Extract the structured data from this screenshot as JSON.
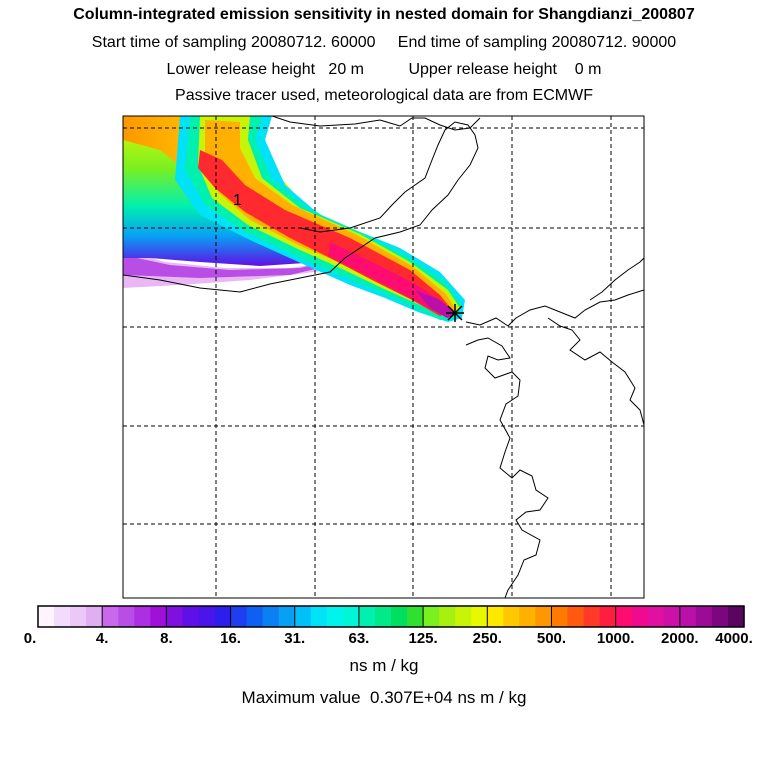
{
  "title": {
    "line1": "Column-integrated emission sensitivity in nested domain for Shangdianzi_200807",
    "line2": "Start time of sampling 20080712. 60000     End time of sampling 20080712. 90000",
    "line3": "Lower release height   20 m          Upper release height    0 m",
    "line4": "Passive tracer used, meteorological data are from ECMWF"
  },
  "map": {
    "contour_label": "1",
    "receptor_marker": "asterisk-marker"
  },
  "colorbar": {
    "ticks": [
      "0.",
      "4.",
      "8.",
      "16.",
      "31.",
      "63.",
      "125.",
      "250.",
      "500.",
      "1000.",
      "2000.",
      "4000."
    ],
    "colors": [
      "#fff4ff",
      "#f2dcfb",
      "#ebc8f7",
      "#dfaff2",
      "#c968ea",
      "#b94ee6",
      "#ad2fe2",
      "#9f10d8",
      "#7f10e0",
      "#6010e6",
      "#4a14ea",
      "#2e1eee",
      "#1e3ef0",
      "#0e60f2",
      "#0a80f2",
      "#08a0f4",
      "#00c0f8",
      "#00e2f6",
      "#00f4ec",
      "#00f6d6",
      "#00f0b0",
      "#00ea8a",
      "#00e060",
      "#30e030",
      "#7af020",
      "#a8f010",
      "#c8f408",
      "#e8f800",
      "#ffe800",
      "#ffc800",
      "#ffb000",
      "#ff9800",
      "#ff7a00",
      "#ff5a10",
      "#ff3a28",
      "#ff1e40",
      "#ff0c70",
      "#f00a90",
      "#e010a0",
      "#cc10a8",
      "#b810a8",
      "#9c0a98",
      "#7c0680",
      "#5a0460"
    ],
    "unit": "ns m / kg",
    "max_value_text": "Maximum value  0.307E+04 ns m / kg"
  }
}
